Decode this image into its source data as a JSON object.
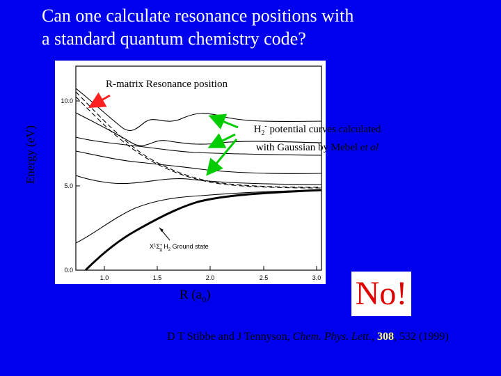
{
  "slide": {
    "title_line1": "Can one calculate resonance positions with",
    "title_line2": "a standard quantum chemistry code?",
    "y_axis_label": "Energy (eV)",
    "x_axis_label_main": "R (a",
    "x_axis_label_sub": "0",
    "x_axis_label_end": ")",
    "rmatrix_label": "R-matrix Resonance position",
    "h2_label": {
      "species": "H",
      "species_sub": "2",
      "species_sup": "-",
      "line1_rest": " potential curves calculated",
      "line2_text": "with Gaussian by Mebel ",
      "line2_italic": "et al"
    },
    "answer": "No!",
    "citation": {
      "authors": "D T Stibbe and J Tennyson, ",
      "journal": "Chem. Phys. Lett.",
      "comma1": ", ",
      "volume": "308",
      "rest": ", 532 (1999)"
    },
    "colors": {
      "background": "#0000ee",
      "title": "#ffffff",
      "answer": "#e00000",
      "volume_highlight": "#ffff66",
      "green_arrow": "#00cc00",
      "red_arrow": "#ff2020"
    }
  },
  "figure": {
    "x_ticks": [
      "1.0",
      "1.5",
      "2.0",
      "2.5",
      "3.0"
    ],
    "y_ticks": [
      "0.0",
      "5.0",
      "10.0"
    ],
    "ground_state_label": {
      "prefix": "X",
      "sup": "1",
      "sigma": "Σ",
      "sub": "g",
      "plus": "+",
      "text": " H",
      "text_sub": "2",
      "rest": " Ground state"
    }
  }
}
